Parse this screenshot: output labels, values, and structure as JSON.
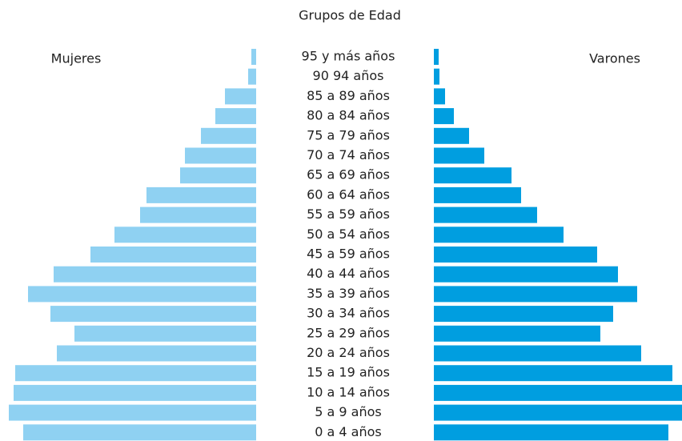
{
  "chart_data": {
    "type": "pyramid",
    "title": "Grupos de Edad",
    "categories": [
      "95 y más años",
      "90  94 años",
      "85 a 89 años",
      "80 a 84 años",
      "75 a 79 años",
      "70 a 74 años",
      "65 a 69 años",
      "60 a 64 años",
      "55 a 59 años",
      "50 a 54 años",
      "45 a 59 años",
      "40 a 44 años",
      "35 a 39 años",
      "30 a 34 años",
      "25 a 29 años",
      "20 a 24 años",
      "15 a 19 años",
      "10 a 14 años",
      "5 a 9 años",
      "0 a 4 años"
    ],
    "series": [
      {
        "name": "Mujeres",
        "color": "#8fd1f2",
        "values": [
          6,
          10,
          39,
          51,
          69,
          89,
          95,
          137,
          145,
          177,
          207,
          253,
          285,
          257,
          227,
          249,
          301,
          303,
          309,
          291
        ]
      },
      {
        "name": "Varones",
        "color": "#009ee0",
        "values": [
          6,
          7,
          14,
          25,
          44,
          63,
          97,
          109,
          129,
          162,
          204,
          230,
          254,
          224,
          208,
          259,
          298,
          310,
          310,
          293
        ]
      }
    ],
    "xlim": [
      0,
      310
    ]
  }
}
